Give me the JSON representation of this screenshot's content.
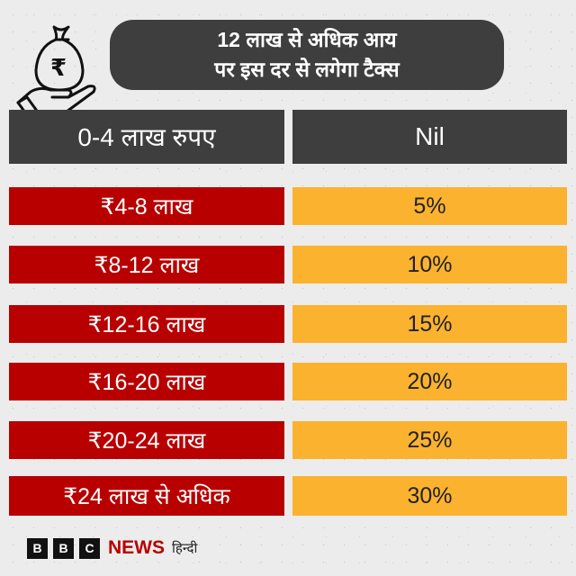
{
  "title": {
    "line1": "12 लाख से अधिक आय",
    "line2": "पर इस दर से लगेगा टैक्स"
  },
  "icon": "money-bag-hand-rupee-icon",
  "header": {
    "range": "0-4 लाख रुपए",
    "rate": "Nil"
  },
  "rows": [
    {
      "range": "₹4-8 लाख",
      "rate": "5%"
    },
    {
      "range": "₹8-12 लाख",
      "rate": "10%"
    },
    {
      "range": "₹12-16 लाख",
      "rate": "15%"
    },
    {
      "range": "₹16-20 लाख",
      "rate": "20%"
    },
    {
      "range": "₹20-24 लाख",
      "rate": "25%"
    },
    {
      "range": "₹24 लाख से अधिक",
      "rate": "30%"
    }
  ],
  "logo": {
    "b1": "B",
    "b2": "B",
    "b3": "C",
    "news": "NEWS",
    "lang": "हिन्दी"
  },
  "colors": {
    "dark": "#3e3e3e",
    "red": "#b80000",
    "yellow": "#fbb22f",
    "background": "#ececec"
  }
}
